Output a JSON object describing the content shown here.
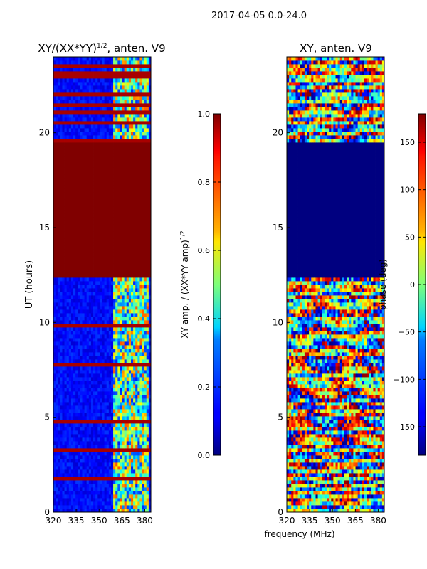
{
  "figure": {
    "suptitle": "2017-04-05 0.0-24.0",
    "shared_xlabel": "frequency (MHz)"
  },
  "colors": {
    "jet_dark_blue": "#00008f",
    "jet_blue": "#0000ff",
    "jet_cyan": "#00ffff",
    "jet_yellow": "#ffff00",
    "jet_red": "#ff0000",
    "jet_dark_red": "#800000"
  },
  "chart_data": [
    {
      "type": "heatmap",
      "title_main": "XY/(XX*YY)",
      "title_exp": "1/2",
      "title_tail": ", anten. V9",
      "xlabel": "",
      "ylabel": "UT (hours)",
      "xlim": [
        320,
        384
      ],
      "ylim": [
        0,
        24
      ],
      "xticks": [
        320,
        335,
        350,
        365,
        380
      ],
      "yticks": [
        0,
        5,
        10,
        15,
        20
      ],
      "saturated_band_hours": [
        12.4,
        19.5
      ],
      "bright_channel_band_mhz": [
        359,
        382
      ],
      "colorbar": {
        "label_main": "XY amp. / (XX*YY amp)",
        "label_exp": "1/2",
        "range": [
          0.0,
          1.0
        ],
        "ticks": [
          "0.0",
          "0.2",
          "0.4",
          "0.6",
          "0.8",
          "1.0"
        ],
        "tick_values": [
          0.0,
          0.2,
          0.4,
          0.6,
          0.8,
          1.0
        ]
      }
    },
    {
      "type": "heatmap",
      "title": "XY, anten. V9",
      "xlabel": "frequency (MHz)",
      "ylabel": "",
      "xlim": [
        320,
        384
      ],
      "ylim": [
        0,
        24
      ],
      "xticks": [
        320,
        335,
        350,
        365,
        380
      ],
      "yticks": [
        0,
        5,
        10,
        15,
        20
      ],
      "flagged_band_hours": [
        12.4,
        19.5
      ],
      "colorbar": {
        "label": "phase (deg)",
        "range": [
          -180,
          180
        ],
        "ticks": [
          "150",
          "100",
          "50",
          "0",
          "−50",
          "−100",
          "−150"
        ],
        "tick_values": [
          150,
          100,
          50,
          0,
          -50,
          -100,
          -150
        ]
      }
    }
  ]
}
